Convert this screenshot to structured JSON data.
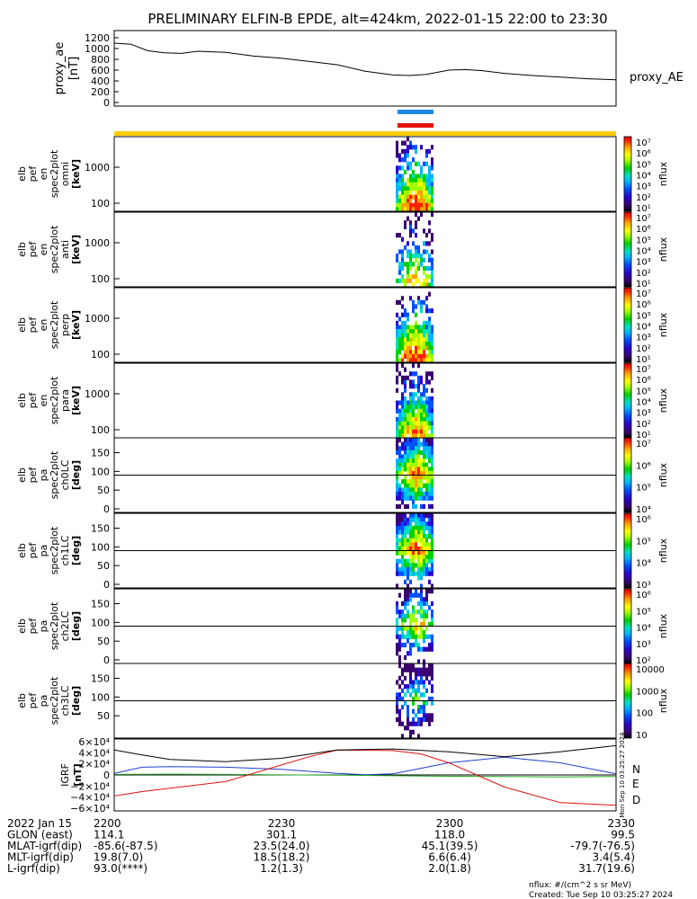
{
  "title": "PRELIMINARY ELFIN-B EPDE, alt=424km, 2022-01-15 22:00 to 23:30",
  "colors": {
    "sci_zone_bar": "#ffcc00",
    "bar_blue": "#1e88e5",
    "bar_red": "#e3120b",
    "mlt_line": "#1f3fcc",
    "grf_n": "#1f3fcc",
    "grf_e": "#22aa22",
    "grf_d": "#dd1111"
  },
  "chart_data": [
    {
      "type": "line",
      "panel": "proxy_ae",
      "ylabel": [
        "proxy_ae",
        "[nT]"
      ],
      "yticks": [
        "1200",
        "1000",
        "800",
        "600",
        "400",
        "200",
        "0"
      ],
      "ylim": [
        0,
        1300
      ],
      "series": [
        {
          "name": "proxy_AE",
          "x": [
            0,
            3,
            6,
            9,
            12,
            15,
            20,
            25,
            30,
            35,
            40,
            45,
            50,
            53,
            56,
            60,
            63,
            66,
            70,
            75,
            80,
            85,
            90
          ],
          "values": [
            1100,
            1080,
            960,
            920,
            910,
            950,
            930,
            860,
            820,
            760,
            700,
            580,
            510,
            500,
            520,
            600,
            610,
            590,
            540,
            500,
            470,
            440,
            420
          ]
        }
      ],
      "xlim": [
        0,
        90
      ]
    },
    {
      "type": "heatmap",
      "panel": "omni",
      "ylabel": [
        "elb",
        "pef",
        "en",
        "spec2plot",
        "omni",
        "[keV]"
      ],
      "yticks": [
        "1000",
        "100"
      ],
      "colorbar": {
        "label": "nflux",
        "ticks": [
          "10⁷",
          "10⁶",
          "10⁵",
          "10⁴",
          "10³",
          "10²",
          "10¹"
        ]
      }
    },
    {
      "type": "heatmap",
      "panel": "anti",
      "ylabel": [
        "elb",
        "pef",
        "en",
        "spec2plot",
        "anti",
        "[keV]"
      ],
      "yticks": [
        "1000",
        "100"
      ],
      "colorbar": {
        "label": "nflux",
        "ticks": [
          "10⁷",
          "10⁶",
          "10⁵",
          "10⁴",
          "10³",
          "10²",
          "10¹"
        ]
      }
    },
    {
      "type": "heatmap",
      "panel": "perp",
      "ylabel": [
        "elb",
        "pef",
        "en",
        "spec2plot",
        "perp",
        "[keV]"
      ],
      "yticks": [
        "1000",
        "100"
      ],
      "colorbar": {
        "label": "nflux",
        "ticks": [
          "10⁷",
          "10⁶",
          "10⁵",
          "10⁴",
          "10³",
          "10²",
          "10¹"
        ]
      }
    },
    {
      "type": "heatmap",
      "panel": "para",
      "ylabel": [
        "elb",
        "pef",
        "en",
        "spec2plot",
        "para",
        "[keV]"
      ],
      "yticks": [
        "1000",
        "100"
      ],
      "colorbar": {
        "label": "nflux",
        "ticks": [
          "10⁷",
          "10⁶",
          "10⁵",
          "10⁴",
          "10³",
          "10²",
          "10¹"
        ]
      }
    },
    {
      "type": "heatmap",
      "panel": "ch0LC",
      "ylabel": [
        "elb",
        "pef",
        "pa",
        "spec2plot",
        "ch0LC",
        "[deg]"
      ],
      "yticks": [
        "150",
        "100",
        "50",
        "0"
      ],
      "colorbar": {
        "label": "nflux",
        "ticks": [
          "10⁷",
          "10⁶",
          "10⁵",
          "10⁴"
        ]
      }
    },
    {
      "type": "heatmap",
      "panel": "ch1LC",
      "ylabel": [
        "elb",
        "pef",
        "pa",
        "spec2plot",
        "ch1LC",
        "[deg]"
      ],
      "yticks": [
        "150",
        "100",
        "50",
        "0"
      ],
      "colorbar": {
        "label": "nflux",
        "ticks": [
          "10⁶",
          "10⁵",
          "10⁴",
          "10³"
        ]
      }
    },
    {
      "type": "heatmap",
      "panel": "ch2LC",
      "ylabel": [
        "elb",
        "pef",
        "pa",
        "spec2plot",
        "ch2LC",
        "[deg]"
      ],
      "yticks": [
        "150",
        "100",
        "50",
        "0"
      ],
      "colorbar": {
        "label": "nflux",
        "ticks": [
          "10⁶",
          "10⁵",
          "10⁴",
          "10³",
          "10²"
        ]
      }
    },
    {
      "type": "heatmap",
      "panel": "ch3LC",
      "ylabel": [
        "elb",
        "pef",
        "pa",
        "spec2plot",
        "ch3LC",
        "[deg]"
      ],
      "yticks": [
        "150",
        "100",
        "50"
      ],
      "colorbar": {
        "label": "nflux",
        "ticks": [
          "10000",
          "1000",
          "100",
          "10"
        ]
      }
    },
    {
      "type": "line",
      "panel": "igrf",
      "ylabel": [
        "IGRF",
        "[nT]"
      ],
      "yticks": [
        "6×10⁴",
        "4×10⁴",
        "2×10⁴",
        "0",
        "−2×10⁴",
        "−4×10⁴",
        "−6×10⁴"
      ],
      "ylim": [
        -65000,
        65000
      ],
      "legend": [
        "N",
        "E",
        "D"
      ],
      "series": [
        {
          "name": "N",
          "x": [
            0,
            5,
            10,
            20,
            30,
            40,
            45,
            50,
            55,
            60,
            70,
            80,
            90
          ],
          "values": [
            3000,
            14000,
            15000,
            14000,
            10000,
            3000,
            500,
            2000,
            12000,
            22000,
            32000,
            22000,
            2000
          ]
        },
        {
          "name": "E",
          "x": [
            0,
            10,
            20,
            30,
            40,
            50,
            60,
            70,
            80,
            90
          ],
          "values": [
            1000,
            1500,
            1000,
            200,
            -300,
            -1500,
            -2500,
            -3000,
            -3500,
            -3000
          ]
        },
        {
          "name": "D",
          "x": [
            0,
            5,
            10,
            20,
            30,
            35,
            40,
            50,
            55,
            60,
            70,
            80,
            90
          ],
          "values": [
            -38000,
            -30000,
            -24000,
            -12000,
            18000,
            33000,
            45000,
            44000,
            38000,
            22000,
            -22000,
            -50000,
            -55000
          ]
        },
        {
          "name": "total",
          "x": [
            0,
            5,
            10,
            20,
            30,
            40,
            50,
            60,
            70,
            80,
            90
          ],
          "values": [
            45000,
            36000,
            28000,
            24000,
            30000,
            45000,
            47000,
            42000,
            33000,
            42000,
            53000
          ]
        }
      ],
      "xlim": [
        0,
        90
      ]
    }
  ],
  "igrf_side_label": "Mon Sep 10 03:25:27 2024",
  "bottom_table": {
    "rows": [
      {
        "label": "2022 Jan 15",
        "values": [
          "2200",
          "2230",
          "2300",
          "2330"
        ]
      },
      {
        "label": "GLON (east)",
        "values": [
          "114.1",
          "301.1",
          "118.0",
          "99.5"
        ]
      },
      {
        "label": "MLAT-igrf(dip)",
        "values": [
          "-85.6(-87.5)",
          "23.5(24.0)",
          "45.1(39.5)",
          "-79.7(-76.5)"
        ]
      },
      {
        "label": "MLT-igrf(dip)",
        "values": [
          "19.8(7.0)",
          "18.5(18.2)",
          "6.6(6.4)",
          "3.4(5.4)"
        ]
      },
      {
        "label": "L-igrf(dip)",
        "values": [
          "93.0(****)",
          "1.2(1.3)",
          "2.0(1.8)",
          "31.7(19.6)"
        ]
      }
    ]
  },
  "footer": {
    "units": "nflux: #/(cm^2 s sr MeV)",
    "created": "Created: Tue Sep 10 03:25:27 2024"
  }
}
